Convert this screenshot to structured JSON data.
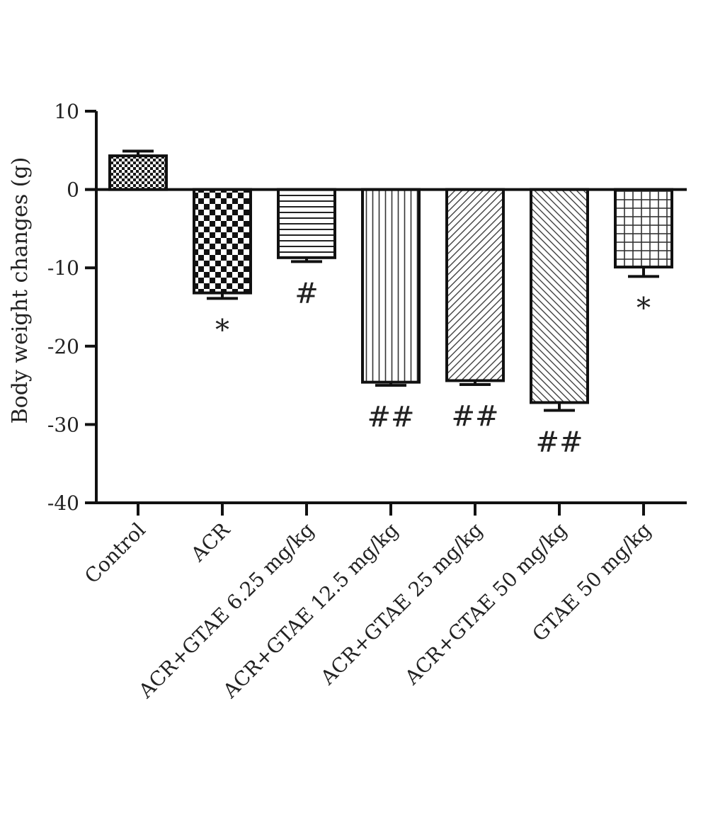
{
  "chart_data": {
    "type": "bar",
    "title": "",
    "xlabel": "",
    "ylabel": "Body weight changes (g)",
    "ylim": [
      -40,
      10
    ],
    "yticks": [
      10,
      0,
      -10,
      -20,
      -30,
      -40
    ],
    "grid": false,
    "legend": "none",
    "categories": [
      "Control",
      "ACR",
      "ACR+GTAE 6.25 mg/kg",
      "ACR+GTAE 12.5 mg/kg",
      "ACR+GTAE 25 mg/kg",
      "ACR+GTAE 50 mg/kg",
      "GTAE 50 mg/kg"
    ],
    "values": [
      4.3,
      -13.2,
      -8.7,
      -24.6,
      -24.4,
      -27.2,
      -9.9
    ],
    "error": [
      0.6,
      0.7,
      0.5,
      0.4,
      0.5,
      1.0,
      1.2
    ],
    "patterns": [
      "dots",
      "checker",
      "hlines",
      "vlines",
      "diag-right",
      "diag-left",
      "grid"
    ],
    "significance": [
      "",
      "*",
      "#",
      "##",
      "##",
      "##",
      "*"
    ]
  }
}
